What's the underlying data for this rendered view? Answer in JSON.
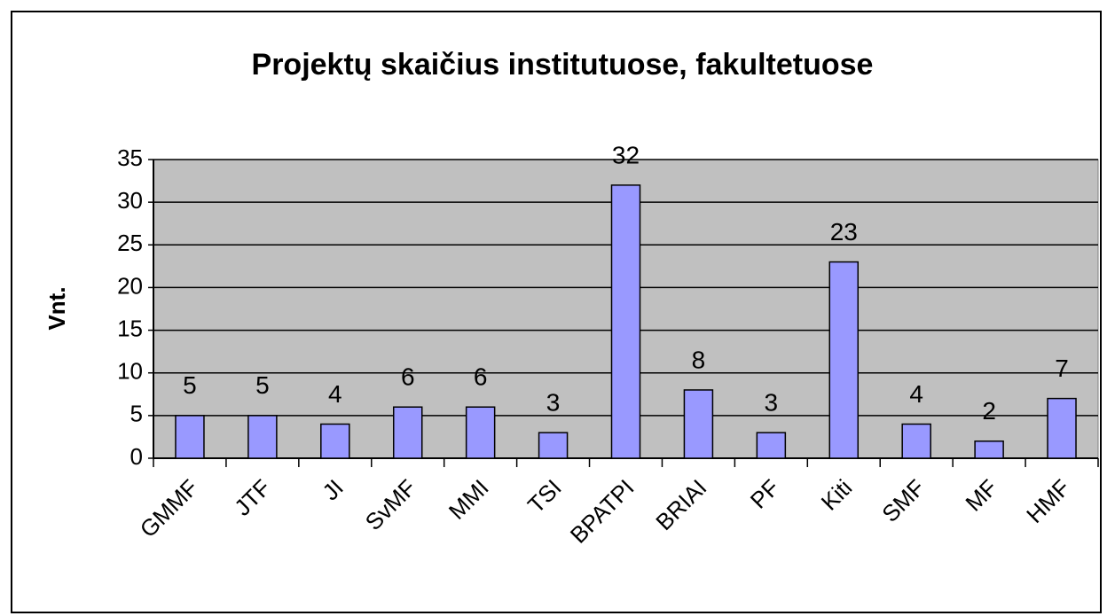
{
  "chart_data": {
    "type": "bar",
    "title": "Projektų skaičius institutuose, fakultetuose",
    "y_label": "Vnt.",
    "categories": [
      "GMMF",
      "JTF",
      "JI",
      "SvMF",
      "MMI",
      "TSI",
      "BPATPI",
      "BRIAI",
      "PF",
      "Kiti",
      "SMF",
      "MF",
      "HMF"
    ],
    "values": [
      5,
      5,
      4,
      6,
      6,
      3,
      32,
      8,
      3,
      23,
      4,
      2,
      7
    ],
    "color": "#9999ff",
    "ylim": [
      0,
      35
    ],
    "yticks": [
      0,
      5,
      10,
      15,
      20,
      25,
      30,
      35
    ],
    "grid": true
  }
}
